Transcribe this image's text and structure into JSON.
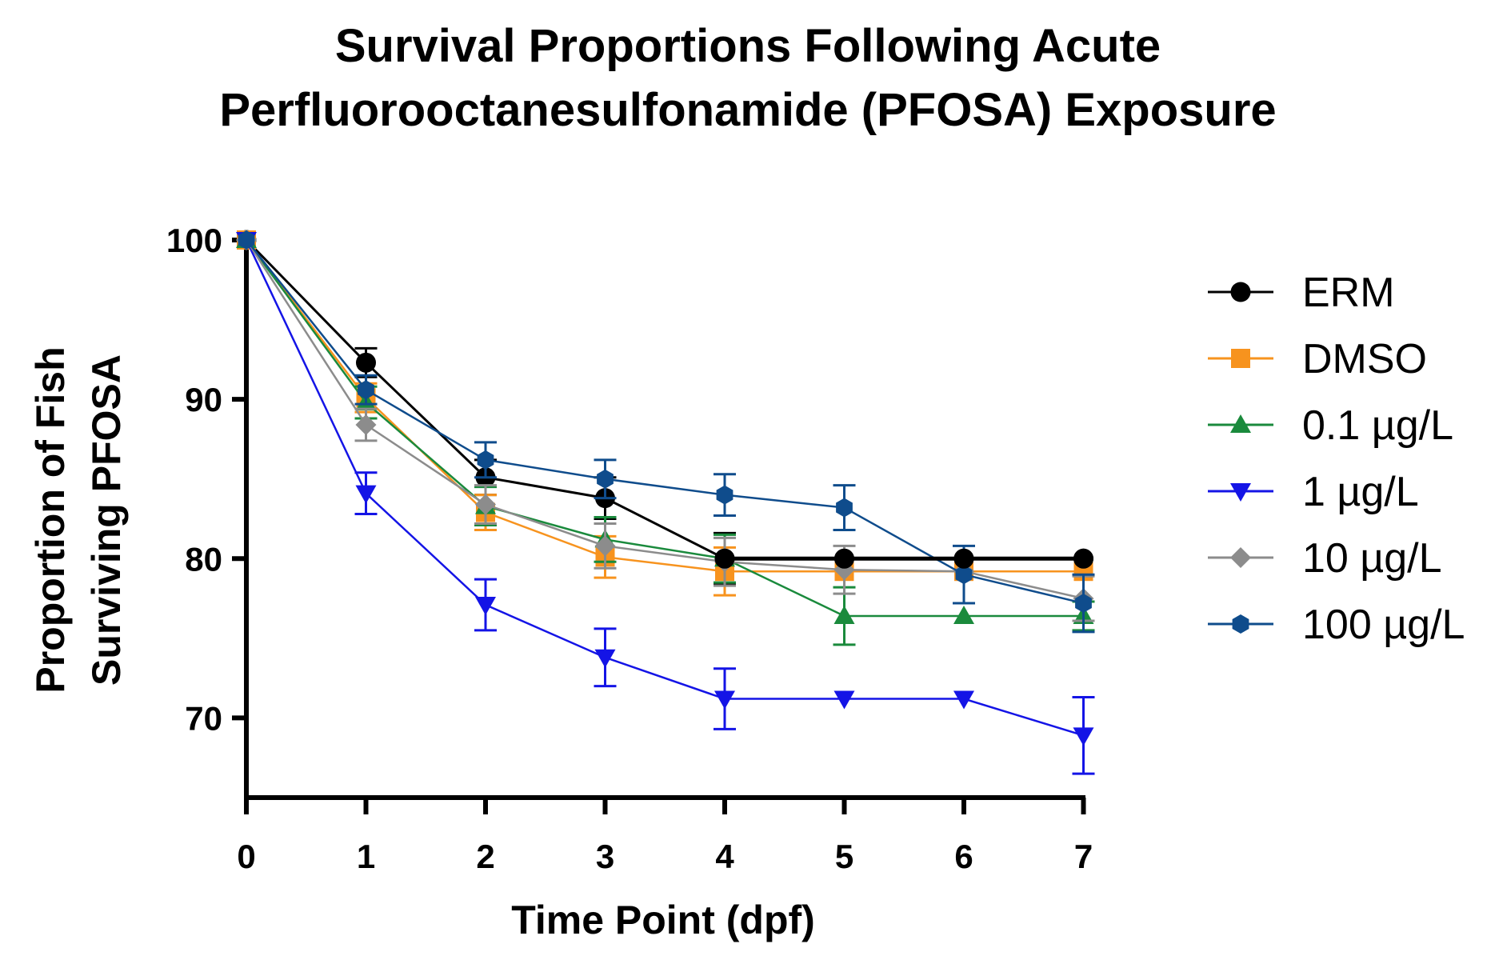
{
  "chart_data": {
    "type": "line",
    "title": [
      "Survival Proportions Following Acute",
      "Perfluorooctanesulfonamide (PFOSA) Exposure"
    ],
    "xlabel": "Time Point (dpf)",
    "ylabel": [
      "Proportion of Fish",
      "Surviving PFOSA"
    ],
    "xlim": [
      0,
      7
    ],
    "ylim": [
      65,
      100
    ],
    "x_ticks": [
      "0",
      "1",
      "2",
      "3",
      "4",
      "5",
      "6",
      "7"
    ],
    "y_ticks": [
      "70",
      "80",
      "90",
      "100"
    ],
    "grid": false,
    "legend_position": "right",
    "x": [
      0,
      1,
      2,
      3,
      4,
      5,
      6,
      7
    ],
    "series": [
      {
        "name": "ERM",
        "color": "#000000",
        "marker": "circle",
        "values": [
          100,
          92.3,
          85.1,
          83.8,
          80,
          80,
          80,
          80
        ],
        "errors": [
          0,
          0.9,
          1.1,
          1.3,
          1.6,
          0,
          0,
          0
        ]
      },
      {
        "name": "DMSO",
        "color": "#f7931e",
        "marker": "square",
        "values": [
          100,
          90.1,
          82.9,
          80.1,
          79.2,
          79.2,
          79.2,
          79.2
        ],
        "errors": [
          0,
          0.9,
          1.1,
          1.3,
          1.5,
          0,
          0,
          0
        ]
      },
      {
        "name": "0.1 µg/L",
        "color": "#1a8a3c",
        "marker": "triangle-up",
        "values": [
          100,
          89.8,
          83.3,
          81.2,
          80,
          76.4,
          76.4,
          76.4
        ],
        "errors": [
          0,
          1,
          1.2,
          1.4,
          1.5,
          1.8,
          0,
          0.9
        ]
      },
      {
        "name": "1 µg/L",
        "color": "#1414e6",
        "marker": "triangle-down",
        "values": [
          100,
          84.1,
          77.1,
          73.8,
          71.2,
          71.2,
          71.2,
          68.9
        ],
        "errors": [
          0,
          1.3,
          1.6,
          1.8,
          1.9,
          0,
          0,
          2.4
        ]
      },
      {
        "name": "10 µg/L",
        "color": "#8c8c8c",
        "marker": "diamond",
        "values": [
          100,
          88.4,
          83.4,
          80.8,
          79.8,
          79.3,
          79.2,
          77.5
        ],
        "errors": [
          0,
          1,
          1.2,
          1.4,
          1.5,
          1.5,
          0,
          1.4
        ]
      },
      {
        "name": "100 µg/L",
        "color": "#0f4c8c",
        "marker": "hexagon",
        "values": [
          100,
          90.6,
          86.2,
          85,
          84,
          83.2,
          79,
          77.2
        ],
        "errors": [
          0,
          0.9,
          1.1,
          1.2,
          1.3,
          1.4,
          1.8,
          1.8
        ]
      }
    ]
  }
}
